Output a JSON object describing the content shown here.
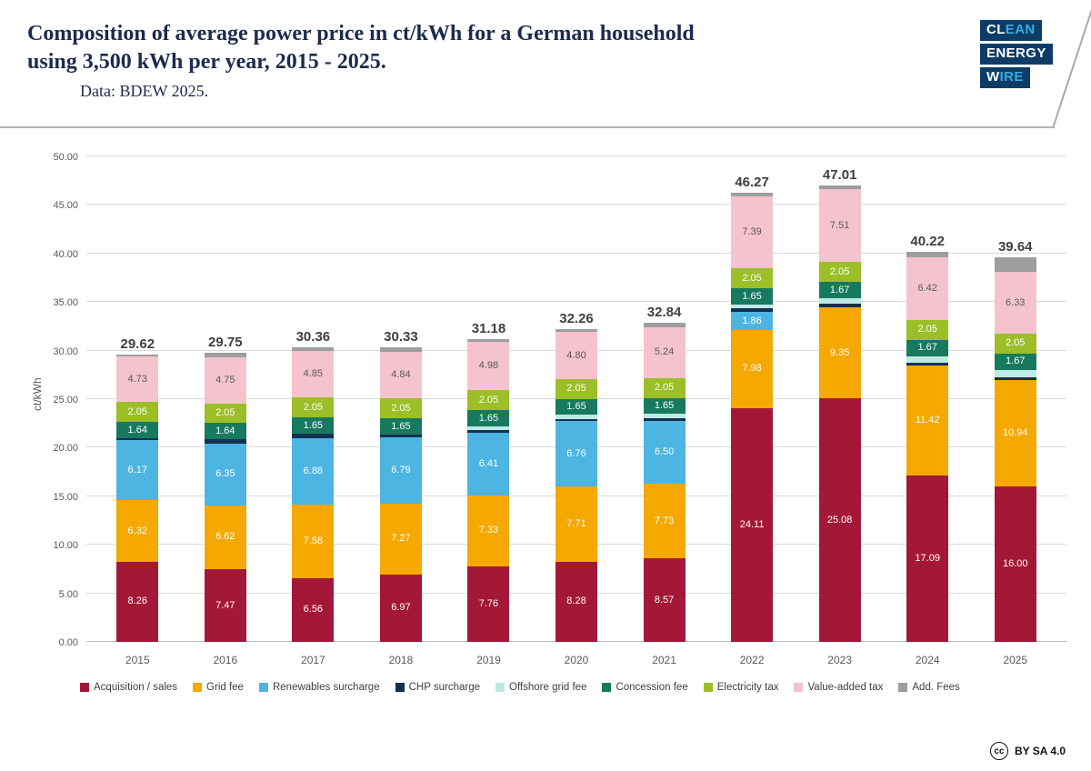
{
  "header": {
    "title_lines": [
      "Composition of average power price in ct/kWh for a German household",
      "using 3,500 kWh per year, 2015 - 2025."
    ],
    "subtitle": "Data: BDEW 2025.",
    "logo_lines": [
      {
        "white": "CL",
        "cyan": "EAN"
      },
      {
        "white": "ENERGY",
        "cyan": ""
      },
      {
        "white": "W",
        "cyan": "IRE"
      }
    ]
  },
  "footer": {
    "cc_icon": "cc",
    "license": "BY SA 4.0"
  },
  "chart_data": {
    "type": "bar",
    "stacked": true,
    "title": "Composition of average power price in ct/kWh for a German household using 3,500 kWh per year, 2015 - 2025.",
    "subtitle": "Data: BDEW 2025.",
    "ylabel": "ct/kWh",
    "ylim": [
      0,
      50
    ],
    "ytick_step": 5,
    "ytick_labels": [
      "0.00",
      "5.00",
      "10.00",
      "15.00",
      "20.00",
      "25.00",
      "30.00",
      "35.00",
      "40.00",
      "45.00",
      "50.00"
    ],
    "grid": true,
    "legend_position": "bottom",
    "categories": [
      "2015",
      "2016",
      "2017",
      "2018",
      "2019",
      "2020",
      "2021",
      "2022",
      "2023",
      "2024",
      "2025"
    ],
    "totals": [
      "29.62",
      "29.75",
      "30.36",
      "30.33",
      "31.18",
      "32.26",
      "32.84",
      "46.27",
      "47.01",
      "40.22",
      "39.64"
    ],
    "segment_label_threshold": 1.6,
    "series": [
      {
        "key": "acquisition-sales",
        "name": "Acquisition / sales",
        "color": "#A41837",
        "label_color": "#ffffff",
        "values": [
          8.26,
          7.47,
          6.56,
          6.97,
          7.76,
          8.28,
          8.57,
          24.11,
          25.08,
          17.09,
          16.0
        ]
      },
      {
        "key": "grid-fee",
        "name": "Grid fee",
        "color": "#F5A800",
        "label_color": "#ffffff",
        "values": [
          6.32,
          6.62,
          7.58,
          7.27,
          7.33,
          7.71,
          7.73,
          7.98,
          9.35,
          11.42,
          10.94
        ]
      },
      {
        "key": "renewables-surcharge",
        "name": "Renewables surcharge",
        "color": "#4DB5E2",
        "label_color": "#ffffff",
        "values": [
          6.17,
          6.35,
          6.88,
          6.79,
          6.41,
          6.76,
          6.5,
          1.86,
          0,
          0,
          0
        ]
      },
      {
        "key": "chp-surcharge",
        "name": "CHP surcharge",
        "color": "#14324F",
        "label_color": "#ffffff",
        "values": [
          0.25,
          0.45,
          0.44,
          0.29,
          0.28,
          0.23,
          0.25,
          0.38,
          0.38,
          0.28,
          0.28
        ]
      },
      {
        "key": "offshore-grid-fee",
        "name": "Offshore grid fee",
        "color": "#BFE9E4",
        "label_color": "#595959",
        "values": [
          0,
          0,
          0,
          0.04,
          0.42,
          0.42,
          0.42,
          0.42,
          0.59,
          0.66,
          0.82
        ]
      },
      {
        "key": "concession-fee",
        "name": "Concession fee",
        "color": "#177A5F",
        "label_color": "#ffffff",
        "values": [
          1.64,
          1.64,
          1.65,
          1.65,
          1.65,
          1.65,
          1.65,
          1.65,
          1.67,
          1.67,
          1.67
        ]
      },
      {
        "key": "electricity-tax",
        "name": "Electricity tax",
        "color": "#9CBE27",
        "label_color": "#ffffff",
        "values": [
          2.05,
          2.05,
          2.05,
          2.05,
          2.05,
          2.05,
          2.05,
          2.05,
          2.05,
          2.05,
          2.05
        ]
      },
      {
        "key": "value-added-tax",
        "name": "Value-added tax",
        "color": "#F4C3CE",
        "label_color": "#595959",
        "values": [
          4.73,
          4.75,
          4.85,
          4.84,
          4.98,
          4.8,
          5.24,
          7.39,
          7.51,
          6.42,
          6.33
        ]
      },
      {
        "key": "add-fees",
        "name": "Add. Fees",
        "color": "#9E9E9E",
        "label_color": "#ffffff",
        "values": [
          0.2,
          0.42,
          0.35,
          0.43,
          0.3,
          0.36,
          0.43,
          0.43,
          0.38,
          0.63,
          1.55
        ]
      }
    ]
  }
}
